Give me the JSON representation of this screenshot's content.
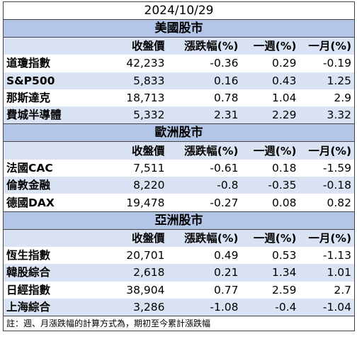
{
  "title": "2024/10/29",
  "headers": {
    "close": "收盤價",
    "change": "漲跌幅(%)",
    "week": "一週(%)",
    "month": "一月(%)"
  },
  "regions": [
    {
      "name": "美國股市",
      "rows": [
        {
          "name": "道瓊指數",
          "close": "42,233",
          "change": "-0.36",
          "week": "0.29",
          "month": "-0.19"
        },
        {
          "name": "S&P500",
          "close": "5,833",
          "change": "0.16",
          "week": "0.43",
          "month": "1.25"
        },
        {
          "name": "那斯達克",
          "close": "18,713",
          "change": "0.78",
          "week": "1.04",
          "month": "2.9"
        },
        {
          "name": "費城半導體",
          "close": "5,332",
          "change": "2.31",
          "week": "2.29",
          "month": "3.32"
        }
      ]
    },
    {
      "name": "歐洲股市",
      "rows": [
        {
          "name": "法國CAC",
          "close": "7,511",
          "change": "-0.61",
          "week": "0.18",
          "month": "-1.59"
        },
        {
          "name": "倫敦金融",
          "close": "8,220",
          "change": "-0.8",
          "week": "-0.35",
          "month": "-0.18"
        },
        {
          "name": "德國DAX",
          "close": "19,478",
          "change": "-0.27",
          "week": "0.08",
          "month": "0.82"
        }
      ]
    },
    {
      "name": "亞洲股市",
      "rows": [
        {
          "name": "恆生指數",
          "close": "20,701",
          "change": "0.49",
          "week": "0.53",
          "month": "-1.13"
        },
        {
          "name": "韓股綜合",
          "close": "2,618",
          "change": "0.21",
          "week": "1.34",
          "month": "1.01"
        },
        {
          "name": "日經指數",
          "close": "38,904",
          "change": "0.77",
          "week": "2.59",
          "month": "2.7"
        },
        {
          "name": "上海綜合",
          "close": "3,286",
          "change": "-1.08",
          "week": "-0.4",
          "month": "-1.04"
        }
      ]
    }
  ],
  "note": "註：週、月漲跌幅的計算方式為，期初至今累計漲跌幅"
}
